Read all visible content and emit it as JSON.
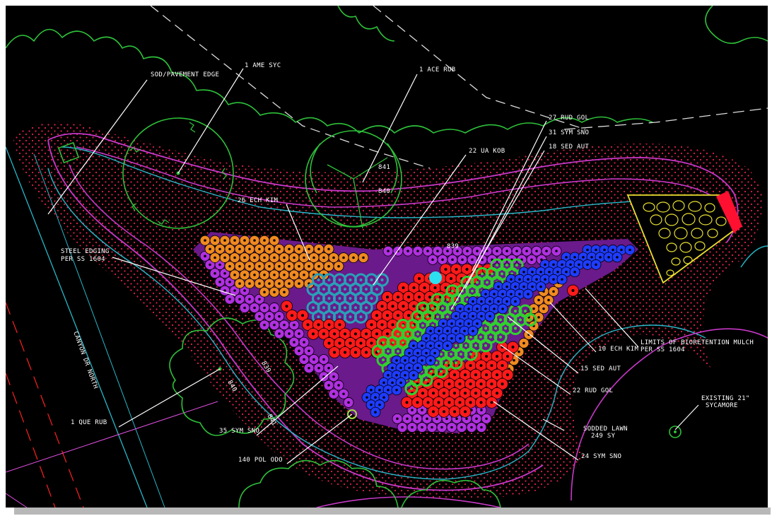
{
  "colors": {
    "background": "#000000",
    "tree_outline": "#2ec03a",
    "mulch_dots": "#e0204a",
    "edging": "#c838c8",
    "curb": "#27b7c8",
    "orange_plant": "#f08a20",
    "red_plant": "#ff1a1a",
    "green_plant": "#30d030",
    "blue_plant": "#1f3cff",
    "purple_plant": "#b030e0",
    "teal_plant": "#2aa0b8",
    "riprap": "#e8e030"
  },
  "labels": {
    "sod_edge": "SOD/PAVEMENT EDGE",
    "ame_syc": "1 AME SYC",
    "ace_rub": "1 ACE RUB",
    "rud_gol_27": "27 RUD GOL",
    "sym_sno_31": "31 SYM SNO",
    "sed_aut_18": "18 SED AUT",
    "ua_kob_22": "22 UA KOB",
    "ech_kim_26": "26 ECH KIM",
    "steel_edging_1": "STEEL EDGING",
    "steel_edging_2": "PER SS 1604",
    "canyon_dr": "CANYON DR NORTH",
    "que_rub": "1 QUE RUB",
    "sym_sno_35": "35 SYM SNO",
    "pol_odo": "140 POL ODO",
    "sym_sno_24": "24 SYM SNO",
    "sodded_lawn_1": "SODDED LAWN",
    "sodded_lawn_2": "249 SY",
    "rud_gol_22": "22 RUD GOL",
    "sed_aut_15": "15 SED AUT",
    "ech_kim_10": "10 ECH KIM",
    "limits_1": "LIMITS OF BIORETENTION MULCH",
    "limits_2": "PER SS 1604",
    "existing_1": "EXISTING 21\"",
    "existing_2": "SYCAMORE"
  },
  "contours": {
    "c841": "841",
    "c840": "840",
    "c839": "839",
    "c839b": "839",
    "c840b": "840",
    "c841b": "841"
  }
}
